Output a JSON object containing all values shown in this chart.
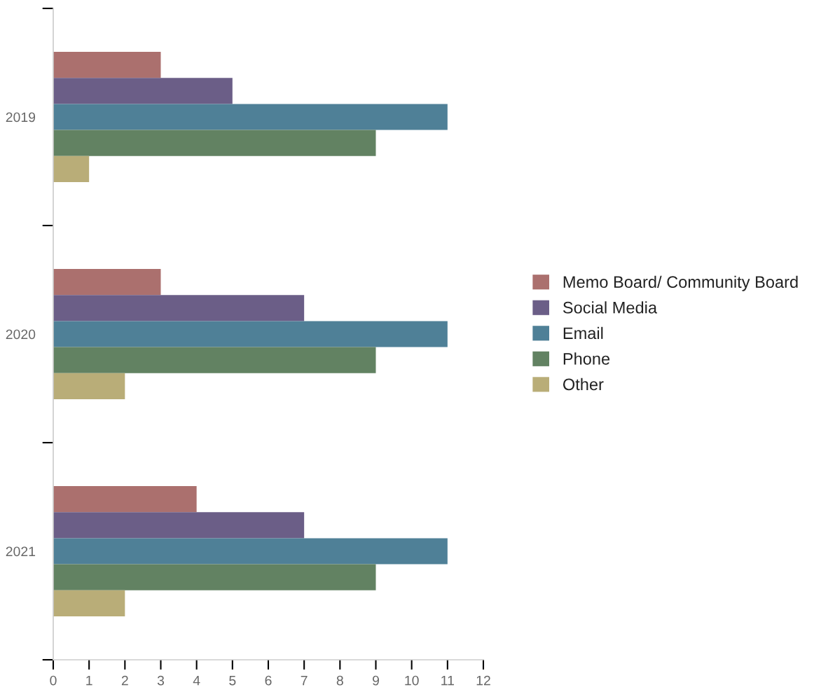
{
  "chart_data": {
    "type": "bar",
    "orientation": "horizontal",
    "categories": [
      "2019",
      "2020",
      "2021"
    ],
    "series": [
      {
        "name": "Memo Board/ Community Board",
        "color": "#ab706e",
        "values": [
          3,
          3,
          4
        ]
      },
      {
        "name": "Social Media",
        "color": "#6b5e87",
        "values": [
          5,
          7,
          7
        ]
      },
      {
        "name": "Email",
        "color": "#4f8097",
        "values": [
          11,
          11,
          11
        ]
      },
      {
        "name": "Phone",
        "color": "#628262",
        "values": [
          9,
          9,
          9
        ]
      },
      {
        "name": "Other",
        "color": "#b9ad78",
        "values": [
          1,
          2,
          2
        ]
      }
    ],
    "xlim": [
      0,
      12
    ],
    "xticks": [
      0,
      1,
      2,
      3,
      4,
      5,
      6,
      7,
      8,
      9,
      10,
      11,
      12
    ],
    "grid": false,
    "legend": "right"
  }
}
